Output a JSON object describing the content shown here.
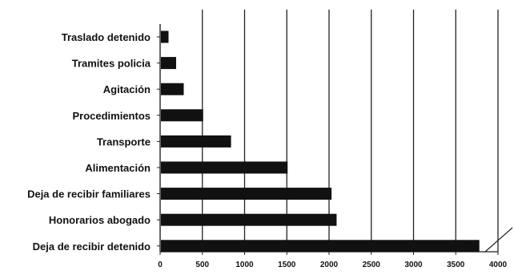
{
  "chart_data": {
    "type": "bar",
    "orientation": "horizontal",
    "categories": [
      "Traslado detenido",
      "Tramites policia",
      "Agitación",
      "Procedimientos",
      "Transporte",
      "Alimentación",
      "Deja de recibir familiares",
      "Honorarios abogado",
      "Deja de recibir detenido"
    ],
    "values": [
      90,
      180,
      270,
      500,
      830,
      1500,
      2020,
      2080,
      3770
    ],
    "xticks": [
      "0",
      "500",
      "1000",
      "1500",
      "2000",
      "2500",
      "3000",
      "3500",
      "4000"
    ],
    "xlim": [
      0,
      4000
    ],
    "title": "",
    "xlabel": "",
    "ylabel": "",
    "grid": "vertical lines",
    "bar_color": "#111111"
  }
}
